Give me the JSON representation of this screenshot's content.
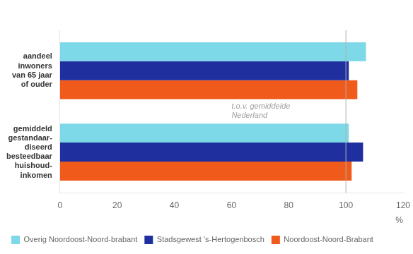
{
  "chart_data": {
    "type": "bar",
    "orientation": "horizontal",
    "categories": [
      "aandeel\ninwoners\nvan 65 jaar\nof ouder",
      "gemiddeld\ngestandaar-\ndiseerd\nbesteedbaar\nhuishoud-\ninkomen"
    ],
    "series": [
      {
        "name": "Overig Noordoost-Noord-brabant",
        "color": "#7dd8e8",
        "values": [
          107,
          101
        ]
      },
      {
        "name": "Stadsgewest ’s-Hertogenbosch",
        "color": "#1f2f9e",
        "values": [
          101,
          106
        ]
      },
      {
        "name": "Noordoost-Noord-Brabant",
        "color": "#f05a1a",
        "values": [
          104,
          102
        ]
      }
    ],
    "xlabel": "%",
    "xlim": [
      0,
      120
    ],
    "xticks": [
      0,
      20,
      40,
      60,
      80,
      100,
      120
    ],
    "reference_line": 100,
    "annotations": [
      {
        "text": "t.o.v. gemiddelde\nNederland"
      }
    ],
    "grid": false,
    "legend": "bottom left"
  }
}
